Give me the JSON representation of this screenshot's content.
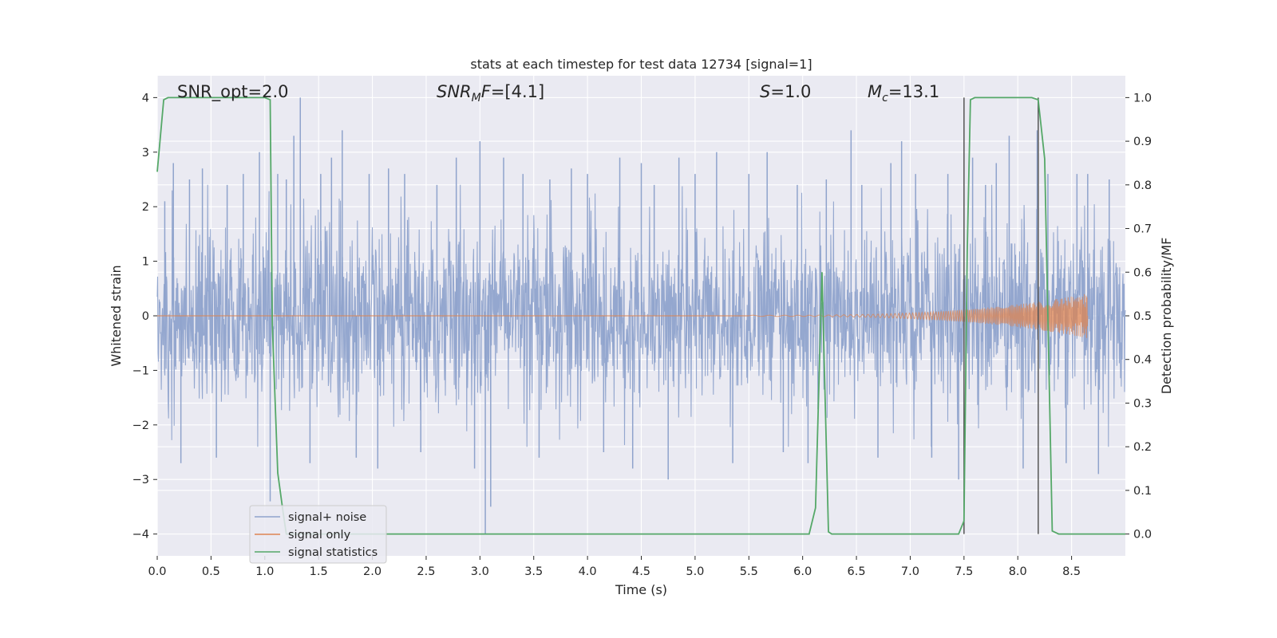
{
  "chart_data": {
    "type": "line",
    "title": "stats at each timestep for test data 12734 [signal=1]",
    "xlabel": "Time (s)",
    "ylabel": "Whitened strain",
    "y2label": "Detection probability/MF",
    "xlim": [
      0.0,
      9.0
    ],
    "ylim": [
      -4.4,
      4.4
    ],
    "y2lim": [
      -0.05,
      1.05
    ],
    "xticks": [
      0.0,
      0.5,
      1.0,
      1.5,
      2.0,
      2.5,
      3.0,
      3.5,
      4.0,
      4.5,
      5.0,
      5.5,
      6.0,
      6.5,
      7.0,
      7.5,
      8.0,
      8.5
    ],
    "xtick_labels": [
      "0.0",
      "0.5",
      "1.0",
      "1.5",
      "2.0",
      "2.5",
      "3.0",
      "3.5",
      "4.0",
      "4.5",
      "5.0",
      "5.5",
      "6.0",
      "6.5",
      "7.0",
      "7.5",
      "8.0",
      "8.5"
    ],
    "yticks": [
      -4,
      -3,
      -2,
      -1,
      0,
      1,
      2,
      3,
      4
    ],
    "ytick_labels": [
      "−4",
      "−3",
      "−2",
      "−1",
      "0",
      "1",
      "2",
      "3",
      "4"
    ],
    "y2ticks": [
      0.0,
      0.1,
      0.2,
      0.3,
      0.4,
      0.5,
      0.6,
      0.7,
      0.8,
      0.9,
      1.0
    ],
    "y2tick_labels": [
      "0.0",
      "0.1",
      "0.2",
      "0.3",
      "0.4",
      "0.5",
      "0.6",
      "0.7",
      "0.8",
      "0.9",
      "1.0"
    ],
    "grid": true,
    "legend_position": "lower-left",
    "annotations": {
      "snr_opt": "SNR_opt=2.0",
      "snr_mf_base": "SNR",
      "snr_mf_sub": "M",
      "snr_mf_rest": "F=[4.1]",
      "s_italic": "S",
      "s_rest": "=1.0",
      "mc_base": "M",
      "mc_sub": "c",
      "mc_rest": "=13.1"
    },
    "series": [
      {
        "name": "signal+ noise",
        "color": "#8fa3cc",
        "style": "dense noise",
        "spikes": [
          [
            0.07,
            2.1
          ],
          [
            0.15,
            2.8
          ],
          [
            0.22,
            -2.7
          ],
          [
            0.3,
            2.5
          ],
          [
            0.42,
            2.7
          ],
          [
            0.55,
            -2.6
          ],
          [
            0.65,
            2.4
          ],
          [
            0.8,
            2.6
          ],
          [
            0.95,
            3.0
          ],
          [
            1.05,
            -3.4
          ],
          [
            1.12,
            2.6
          ],
          [
            1.2,
            2.5
          ],
          [
            1.27,
            3.3
          ],
          [
            1.33,
            4.0
          ],
          [
            1.42,
            -2.7
          ],
          [
            1.52,
            2.6
          ],
          [
            1.62,
            2.9
          ],
          [
            1.72,
            3.4
          ],
          [
            1.85,
            -2.6
          ],
          [
            1.97,
            2.6
          ],
          [
            2.05,
            -2.8
          ],
          [
            2.15,
            2.7
          ],
          [
            2.3,
            2.6
          ],
          [
            2.45,
            -2.5
          ],
          [
            2.6,
            2.4
          ],
          [
            2.78,
            2.9
          ],
          [
            2.95,
            -2.8
          ],
          [
            3.0,
            3.2
          ],
          [
            3.05,
            -4.0
          ],
          [
            3.1,
            -3.5
          ],
          [
            3.22,
            2.9
          ],
          [
            3.4,
            2.6
          ],
          [
            3.55,
            -2.6
          ],
          [
            3.65,
            2.5
          ],
          [
            3.85,
            2.7
          ],
          [
            4.0,
            2.6
          ],
          [
            4.15,
            -2.5
          ],
          [
            4.3,
            2.9
          ],
          [
            4.42,
            -2.8
          ],
          [
            4.5,
            2.8
          ],
          [
            4.62,
            2.4
          ],
          [
            4.75,
            -3.0
          ],
          [
            4.85,
            2.9
          ],
          [
            5.0,
            2.6
          ],
          [
            5.2,
            3.0
          ],
          [
            5.35,
            -2.7
          ],
          [
            5.5,
            2.6
          ],
          [
            5.67,
            3.0
          ],
          [
            5.82,
            -2.5
          ],
          [
            5.95,
            2.4
          ],
          [
            6.05,
            -2.7
          ],
          [
            6.22,
            2.5
          ],
          [
            6.45,
            3.4
          ],
          [
            6.55,
            2.4
          ],
          [
            6.7,
            -2.6
          ],
          [
            6.82,
            2.8
          ],
          [
            6.92,
            3.2
          ],
          [
            7.05,
            2.6
          ],
          [
            7.2,
            -2.6
          ],
          [
            7.35,
            2.6
          ],
          [
            7.45,
            -3.0
          ],
          [
            7.58,
            2.9
          ],
          [
            7.7,
            2.4
          ],
          [
            7.8,
            2.8
          ],
          [
            7.92,
            3.3
          ],
          [
            8.05,
            -2.8
          ],
          [
            8.18,
            3.4
          ],
          [
            8.28,
            2.6
          ],
          [
            8.45,
            -2.7
          ],
          [
            8.55,
            2.6
          ],
          [
            8.65,
            2.6
          ],
          [
            8.75,
            -2.9
          ],
          [
            8.85,
            2.5
          ]
        ]
      },
      {
        "name": "signal only",
        "color": "#dd8452",
        "chirp": {
          "start": 5.5,
          "end": 8.65,
          "peak_amplitude": 0.4
        }
      },
      {
        "name": "signal statistics",
        "color": "#55a868",
        "axis": "right",
        "x": [
          0.0,
          0.06,
          0.1,
          0.15,
          0.5,
          1.0,
          1.05,
          1.07,
          1.12,
          1.17,
          1.2,
          1.5,
          2.0,
          3.0,
          4.0,
          5.0,
          6.0,
          6.06,
          6.12,
          6.18,
          6.24,
          6.27,
          6.5,
          7.0,
          7.45,
          7.5,
          7.53,
          7.56,
          7.6,
          7.7,
          8.0,
          8.13,
          8.19,
          8.25,
          8.32,
          8.38,
          8.5,
          9.0
        ],
        "y": [
          0.83,
          0.995,
          1.0,
          1.0,
          1.0,
          1.0,
          0.995,
          0.48,
          0.14,
          0.05,
          0.0,
          0.0,
          0.0,
          0.0,
          0.0,
          0.0,
          0.0,
          0.0,
          0.06,
          0.6,
          0.005,
          0.0,
          0.0,
          0.0,
          0.0,
          0.03,
          0.65,
          0.995,
          1.0,
          1.0,
          1.0,
          1.0,
          0.995,
          0.86,
          0.007,
          0.0,
          0.0,
          0.0
        ]
      }
    ],
    "vlines": [
      {
        "x": 7.5,
        "ymin": -4.0,
        "ymax": 4.0,
        "color": "#555555"
      },
      {
        "x": 8.19,
        "ymin": -4.0,
        "ymax": 4.0,
        "color": "#555555"
      }
    ]
  }
}
